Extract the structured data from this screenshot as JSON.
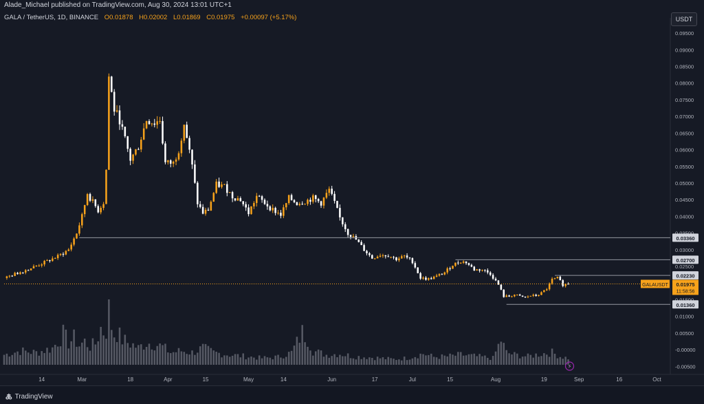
{
  "header": {
    "publisher": "Alade_Michael published on TradingView.com, Aug 30, 2024 13:01 UTC+1"
  },
  "symbol_info": {
    "symbol": "GALA / TetherUS, 1D, BINANCE",
    "open": "O0.01878",
    "high": "H0.02002",
    "low": "L0.01869",
    "close": "C0.01975",
    "change": "+0.00097 (+5.17%)"
  },
  "currency_button": "USDT",
  "footer": {
    "logo_text": "TradingView"
  },
  "price_label": {
    "symbol": "GALAUSDT",
    "price": "0.01975",
    "countdown": "11:58:56"
  },
  "colors": {
    "background": "#161a25",
    "bull": "#f7a21b",
    "bear": "#ffffff",
    "volume": "#5d606b",
    "level_line": "#9598a1",
    "grid": "#1e222d",
    "text": "#d1d4dc"
  },
  "chart_data": {
    "type": "candlestick",
    "title": "GALA / TetherUS, 1D, BINANCE",
    "xlabel": "",
    "ylabel": "",
    "ylim": [
      -0.007,
      0.0975
    ],
    "grid": false,
    "y_ticks": [
      "0.09500",
      "0.09000",
      "0.08500",
      "0.08000",
      "0.07500",
      "0.07000",
      "0.06500",
      "0.06000",
      "0.05500",
      "0.05000",
      "0.04500",
      "0.04000",
      "0.03500",
      "0.03000",
      "0.02500",
      "0.02000",
      "0.01500",
      "0.01000",
      "0.00500",
      "-0.00000",
      "-0.00500"
    ],
    "x_ticks": [
      {
        "label": "14",
        "day": 14
      },
      {
        "label": "Mar",
        "day": 29
      },
      {
        "label": "18",
        "day": 47
      },
      {
        "label": "Apr",
        "day": 61
      },
      {
        "label": "15",
        "day": 75
      },
      {
        "label": "May",
        "day": 91
      },
      {
        "label": "14",
        "day": 104
      },
      {
        "label": "Jun",
        "day": 122
      },
      {
        "label": "17",
        "day": 138
      },
      {
        "label": "Jul",
        "day": 152
      },
      {
        "label": "15",
        "day": 166
      },
      {
        "label": "Aug",
        "day": 183
      },
      {
        "label": "19",
        "day": 201
      },
      {
        "label": "Sep",
        "day": 214
      },
      {
        "label": "16",
        "day": 229
      },
      {
        "label": "Oct",
        "day": 243
      }
    ],
    "levels": [
      {
        "value": 0.0336,
        "label": "0.03360",
        "from_day": 28
      },
      {
        "value": 0.027,
        "label": "0.02700",
        "from_day": 168
      },
      {
        "value": 0.0223,
        "label": "0.02230",
        "from_day": 205
      },
      {
        "value": 0.0136,
        "label": "0.01360",
        "from_day": 187
      }
    ],
    "current_price": 0.01975,
    "close_series": [
      {
        "day": 0,
        "close": 0.0215
      },
      {
        "day": 5,
        "close": 0.023
      },
      {
        "day": 10,
        "close": 0.0245
      },
      {
        "day": 15,
        "close": 0.0262
      },
      {
        "day": 20,
        "close": 0.028
      },
      {
        "day": 24,
        "close": 0.03
      },
      {
        "day": 27,
        "close": 0.035
      },
      {
        "day": 29,
        "close": 0.04
      },
      {
        "day": 31,
        "close": 0.047
      },
      {
        "day": 32,
        "close": 0.0455
      },
      {
        "day": 35,
        "close": 0.0418
      },
      {
        "day": 37,
        "close": 0.0442
      },
      {
        "day": 38,
        "close": 0.054
      },
      {
        "day": 39,
        "close": 0.082
      },
      {
        "day": 41,
        "close": 0.072
      },
      {
        "day": 43,
        "close": 0.069
      },
      {
        "day": 45,
        "close": 0.063
      },
      {
        "day": 47,
        "close": 0.057
      },
      {
        "day": 50,
        "close": 0.061
      },
      {
        "day": 53,
        "close": 0.069
      },
      {
        "day": 56,
        "close": 0.068
      },
      {
        "day": 58,
        "close": 0.069
      },
      {
        "day": 60,
        "close": 0.056
      },
      {
        "day": 63,
        "close": 0.056
      },
      {
        "day": 65,
        "close": 0.06
      },
      {
        "day": 67,
        "close": 0.068
      },
      {
        "day": 70,
        "close": 0.055
      },
      {
        "day": 72,
        "close": 0.044
      },
      {
        "day": 74,
        "close": 0.041
      },
      {
        "day": 76,
        "close": 0.042
      },
      {
        "day": 79,
        "close": 0.0495
      },
      {
        "day": 82,
        "close": 0.049
      },
      {
        "day": 85,
        "close": 0.046
      },
      {
        "day": 88,
        "close": 0.045
      },
      {
        "day": 91,
        "close": 0.041
      },
      {
        "day": 94,
        "close": 0.046
      },
      {
        "day": 97,
        "close": 0.044
      },
      {
        "day": 100,
        "close": 0.042
      },
      {
        "day": 103,
        "close": 0.0405
      },
      {
        "day": 106,
        "close": 0.0455
      },
      {
        "day": 109,
        "close": 0.044
      },
      {
        "day": 112,
        "close": 0.0445
      },
      {
        "day": 115,
        "close": 0.0455
      },
      {
        "day": 118,
        "close": 0.044
      },
      {
        "day": 121,
        "close": 0.048
      },
      {
        "day": 123,
        "close": 0.044
      },
      {
        "day": 125,
        "close": 0.0395
      },
      {
        "day": 128,
        "close": 0.035
      },
      {
        "day": 131,
        "close": 0.033
      },
      {
        "day": 134,
        "close": 0.03
      },
      {
        "day": 137,
        "close": 0.0275
      },
      {
        "day": 140,
        "close": 0.0285
      },
      {
        "day": 143,
        "close": 0.0283
      },
      {
        "day": 146,
        "close": 0.0272
      },
      {
        "day": 149,
        "close": 0.028
      },
      {
        "day": 152,
        "close": 0.0265
      },
      {
        "day": 155,
        "close": 0.0215
      },
      {
        "day": 158,
        "close": 0.0212
      },
      {
        "day": 161,
        "close": 0.022
      },
      {
        "day": 164,
        "close": 0.0232
      },
      {
        "day": 167,
        "close": 0.0255
      },
      {
        "day": 170,
        "close": 0.0265
      },
      {
        "day": 172,
        "close": 0.0262
      },
      {
        "day": 175,
        "close": 0.024
      },
      {
        "day": 178,
        "close": 0.024
      },
      {
        "day": 181,
        "close": 0.0228
      },
      {
        "day": 184,
        "close": 0.0195
      },
      {
        "day": 186,
        "close": 0.016
      },
      {
        "day": 188,
        "close": 0.016
      },
      {
        "day": 190,
        "close": 0.0165
      },
      {
        "day": 192,
        "close": 0.016
      },
      {
        "day": 194,
        "close": 0.0157
      },
      {
        "day": 196,
        "close": 0.0162
      },
      {
        "day": 198,
        "close": 0.0162
      },
      {
        "day": 200,
        "close": 0.017
      },
      {
        "day": 202,
        "close": 0.0183
      },
      {
        "day": 204,
        "close": 0.021
      },
      {
        "day": 206,
        "close": 0.0215
      },
      {
        "day": 208,
        "close": 0.0195
      },
      {
        "day": 210,
        "close": 0.0198
      }
    ],
    "volume_series": [
      {
        "day": 0,
        "vol": 0.18
      },
      {
        "day": 6,
        "vol": 0.25
      },
      {
        "day": 12,
        "vol": 0.22
      },
      {
        "day": 18,
        "vol": 0.3
      },
      {
        "day": 22,
        "vol": 0.55
      },
      {
        "day": 24,
        "vol": 0.4
      },
      {
        "day": 26,
        "vol": 0.48
      },
      {
        "day": 28,
        "vol": 0.35
      },
      {
        "day": 30,
        "vol": 0.42
      },
      {
        "day": 32,
        "vol": 0.33
      },
      {
        "day": 34,
        "vol": 0.38
      },
      {
        "day": 36,
        "vol": 0.66
      },
      {
        "day": 37,
        "vol": 0.6
      },
      {
        "day": 38,
        "vol": 0.62
      },
      {
        "day": 39,
        "vol": 1.0
      },
      {
        "day": 40,
        "vol": 0.7
      },
      {
        "day": 41,
        "vol": 0.55
      },
      {
        "day": 42,
        "vol": 0.58
      },
      {
        "day": 44,
        "vol": 0.45
      },
      {
        "day": 46,
        "vol": 0.4
      },
      {
        "day": 48,
        "vol": 0.36
      },
      {
        "day": 50,
        "vol": 0.3
      },
      {
        "day": 53,
        "vol": 0.4
      },
      {
        "day": 56,
        "vol": 0.38
      },
      {
        "day": 59,
        "vol": 0.32
      },
      {
        "day": 62,
        "vol": 0.22
      },
      {
        "day": 66,
        "vol": 0.25
      },
      {
        "day": 70,
        "vol": 0.22
      },
      {
        "day": 74,
        "vol": 0.3
      },
      {
        "day": 78,
        "vol": 0.22
      },
      {
        "day": 84,
        "vol": 0.18
      },
      {
        "day": 90,
        "vol": 0.15
      },
      {
        "day": 96,
        "vol": 0.12
      },
      {
        "day": 102,
        "vol": 0.14
      },
      {
        "day": 107,
        "vol": 0.22
      },
      {
        "day": 111,
        "vol": 0.58
      },
      {
        "day": 113,
        "vol": 0.48
      },
      {
        "day": 115,
        "vol": 0.25
      },
      {
        "day": 120,
        "vol": 0.18
      },
      {
        "day": 125,
        "vol": 0.2
      },
      {
        "day": 130,
        "vol": 0.15
      },
      {
        "day": 135,
        "vol": 0.14
      },
      {
        "day": 140,
        "vol": 0.12
      },
      {
        "day": 145,
        "vol": 0.1
      },
      {
        "day": 150,
        "vol": 0.12
      },
      {
        "day": 156,
        "vol": 0.2
      },
      {
        "day": 160,
        "vol": 0.14
      },
      {
        "day": 165,
        "vol": 0.15
      },
      {
        "day": 170,
        "vol": 0.18
      },
      {
        "day": 176,
        "vol": 0.15
      },
      {
        "day": 182,
        "vol": 0.12
      },
      {
        "day": 185,
        "vol": 0.45
      },
      {
        "day": 187,
        "vol": 0.22
      },
      {
        "day": 190,
        "vol": 0.18
      },
      {
        "day": 195,
        "vol": 0.15
      },
      {
        "day": 200,
        "vol": 0.2
      },
      {
        "day": 204,
        "vol": 0.22
      },
      {
        "day": 207,
        "vol": 0.15
      },
      {
        "day": 210,
        "vol": 0.12
      }
    ]
  }
}
